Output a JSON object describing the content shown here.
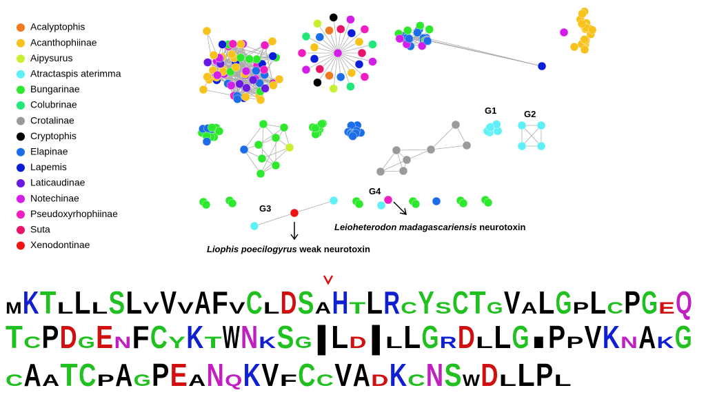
{
  "legend": [
    {
      "name": "Acalyptophis",
      "color": "#f07a22"
    },
    {
      "name": "Acanthophiinae",
      "color": "#f8c21c"
    },
    {
      "name": "Aipysurus",
      "color": "#c8f032"
    },
    {
      "name": "Atractaspis aterimma",
      "color": "#5ef0f6"
    },
    {
      "name": "Bungarinae",
      "color": "#2ee82e"
    },
    {
      "name": "Colubrinae",
      "color": "#22e87a"
    },
    {
      "name": "Crotalinae",
      "color": "#9a9a9a"
    },
    {
      "name": "Cryptophis",
      "color": "#000000"
    },
    {
      "name": "Elapinae",
      "color": "#1c6ee8"
    },
    {
      "name": "Lapemis",
      "color": "#0a1ed8"
    },
    {
      "name": "Laticaudinae",
      "color": "#6a1ae0"
    },
    {
      "name": "Notechinae",
      "color": "#d21ee8"
    },
    {
      "name": "Pseudoxyrhophiinae",
      "color": "#f01ec0"
    },
    {
      "name": "Suta",
      "color": "#e8146a"
    },
    {
      "name": "Xenodontinae",
      "color": "#f01414"
    }
  ],
  "groups": [
    "G1",
    "G2",
    "G3",
    "G4"
  ],
  "annotations": [
    {
      "italic": "Liophis poecilogyrus",
      "text": " weak neurotoxin"
    },
    {
      "italic": "Leioheterodon madagascariensis",
      "text": " neurotoxin"
    }
  ],
  "logo": {
    "rows": [
      [
        "M",
        "K",
        "T",
        "L",
        "L",
        "L",
        "S",
        "L",
        "V",
        "V",
        "V",
        "A",
        "F",
        "V",
        "C",
        "L",
        "D",
        "S",
        "A",
        "H",
        "T",
        "L",
        "R",
        "C",
        "Y",
        "S",
        "C",
        "T",
        "G",
        "V",
        "A",
        "L",
        "G",
        "P",
        "L",
        "C",
        "P",
        "G",
        "E",
        "Q"
      ],
      [
        "T",
        "C",
        "P",
        "D",
        "G",
        "E",
        "N",
        "F",
        "C",
        "Y",
        "K",
        "T",
        "W",
        "N",
        "K",
        "S",
        "G",
        "|",
        "L",
        "D",
        "|",
        "L",
        "L",
        "G",
        "R",
        "D",
        "L",
        "L",
        "G",
        "I",
        "P",
        "P",
        "V",
        "K",
        "N",
        "A",
        "K",
        "G"
      ],
      [
        "C",
        "A",
        "A",
        "T",
        "C",
        "P",
        "A",
        "G",
        "P",
        "E",
        "A",
        "N",
        "Q",
        "K",
        "V",
        "F",
        "C",
        "C",
        "V",
        "A",
        "D",
        "K",
        "C",
        "N",
        "S",
        "W",
        "D",
        "L",
        "L",
        "P",
        "L"
      ]
    ],
    "colors": {
      "A": "#000000",
      "V": "#000000",
      "L": "#000000",
      "I": "#000000",
      "P": "#000000",
      "F": "#000000",
      "W": "#000000",
      "M": "#000000",
      "K": "#1020d0",
      "R": "#1020d0",
      "H": "#1020d0",
      "D": "#d01010",
      "E": "#d01010",
      "N": "#c020c0",
      "Q": "#c020c0",
      "C": "#20c020",
      "G": "#20c020",
      "S": "#20c020",
      "T": "#20c020",
      "Y": "#20c020",
      "|": "#000000"
    }
  }
}
